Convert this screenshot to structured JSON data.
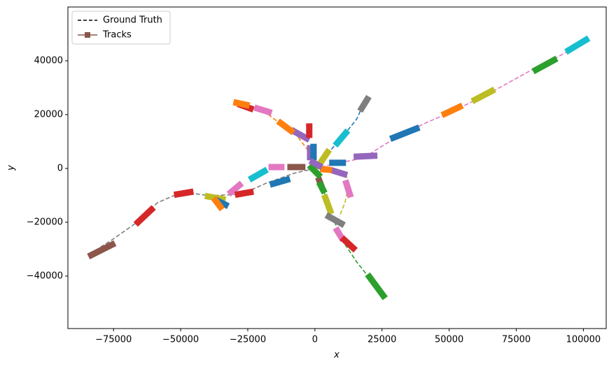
{
  "chart_data": {
    "type": "line",
    "xlabel": "x",
    "ylabel": "y",
    "xlim": [
      -92000,
      108500
    ],
    "ylim": [
      -59500,
      60000
    ],
    "xticks": [
      {
        "value": -75000,
        "label": "−75000"
      },
      {
        "value": -50000,
        "label": "−50000"
      },
      {
        "value": -25000,
        "label": "−25000"
      },
      0,
      25000,
      50000,
      75000,
      100000
    ],
    "yticks": [
      {
        "value": -40000,
        "label": "−40000"
      },
      {
        "value": -20000,
        "label": "−20000"
      },
      0,
      20000,
      40000
    ],
    "legend": {
      "loc": "upper left",
      "entries": [
        {
          "label": "Ground Truth",
          "color": "#000000",
          "style": "dashed"
        },
        {
          "label": "Tracks",
          "color": "#8c564b",
          "style": "solid-square"
        }
      ]
    },
    "ground_truth": [
      {
        "color": "#e377c2",
        "x": [
          0,
          9100,
          18200,
          24700,
          31200,
          41700,
          50800,
          65100,
          80700,
          88500,
          101000
        ],
        "y": [
          0,
          2100,
          3900,
          8100,
          12000,
          17100,
          21000,
          28000,
          36600,
          40300,
          47500
        ]
      },
      {
        "color": "#1f77b4",
        "x": [
          0,
          4700,
          10400,
          15600,
          18800
        ],
        "y": [
          0,
          5500,
          11900,
          18400,
          25500
        ]
      },
      {
        "color": "#ff7f0e",
        "x": [
          0,
          -2600,
          -6500,
          -11700,
          -19500,
          -27300
        ],
        "y": [
          0,
          6800,
          11900,
          15800,
          21600,
          23600
        ]
      },
      {
        "color": "#7f7f7f",
        "x": [
          0,
          -7800,
          -18200,
          -27300,
          -39100,
          -49500,
          -58600,
          -65100,
          -75500,
          -83300
        ],
        "y": [
          0,
          -1800,
          -5500,
          -9600,
          -10100,
          -8800,
          -12700,
          -19200,
          -26500,
          -31400
        ]
      },
      {
        "color": "#2ca02c",
        "x": [
          0,
          2600,
          6500,
          10400,
          15600,
          20800,
          24700
        ],
        "y": [
          0,
          -6200,
          -18000,
          -27000,
          -34800,
          -41300,
          -46500
        ]
      },
      {
        "color": "#bcbd22",
        "x": [
          0,
          6500,
          11700,
          12500,
          11200,
          9100
        ],
        "y": [
          0,
          -500,
          -2300,
          -6200,
          -12700,
          -17900
        ]
      }
    ],
    "tracks": [
      {
        "color": "#9467bd",
        "x": [
          15600,
          22100
        ],
        "y": [
          4400,
          4700
        ]
      },
      {
        "color": "#1f77b4",
        "x": [
          29200,
          37800
        ],
        "y": [
          11400,
          14800
        ]
      },
      {
        "color": "#ff7f0e",
        "x": [
          48400,
          53900
        ],
        "y": [
          20300,
          22900
        ]
      },
      {
        "color": "#bcbd22",
        "x": [
          59600,
          65900
        ],
        "y": [
          25500,
          28800
        ]
      },
      {
        "color": "#2ca02c",
        "x": [
          82300,
          89100
        ],
        "y": [
          36600,
          40300
        ]
      },
      {
        "color": "#17becf",
        "x": [
          94500,
          101000
        ],
        "y": [
          43900,
          47800
        ]
      },
      {
        "color": "#17becf",
        "x": [
          8300,
          11500
        ],
        "y": [
          9400,
          13200
        ]
      },
      {
        "color": "#7f7f7f",
        "x": [
          17400,
          19500
        ],
        "y": [
          22300,
          25700
        ]
      },
      {
        "color": "#9467bd",
        "x": [
          -7800,
          -3100
        ],
        "y": [
          13800,
          11200
        ]
      },
      {
        "color": "#ff7f0e",
        "x": [
          -12800,
          -8900
        ],
        "y": [
          16900,
          14000
        ]
      },
      {
        "color": "#e377c2",
        "x": [
          -21400,
          -17200
        ],
        "y": [
          22300,
          21000
        ]
      },
      {
        "color": "#d62728",
        "x": [
          -27600,
          -24000
        ],
        "y": [
          23600,
          22300
        ]
      },
      {
        "color": "#ff7f0e",
        "x": [
          -29200,
          -25500
        ],
        "y": [
          24400,
          23600
        ]
      },
      {
        "color": "#d62728",
        "x": [
          -2100,
          -2100
        ],
        "y": [
          15600,
          12500
        ]
      },
      {
        "color": "#8c564b",
        "x": [
          -9100,
          -4700
        ],
        "y": [
          500,
          500
        ]
      },
      {
        "color": "#e377c2",
        "x": [
          -16100,
          -12500
        ],
        "y": [
          500,
          500
        ]
      },
      {
        "color": "#1f77b4",
        "x": [
          -15600,
          -10400
        ],
        "y": [
          -5700,
          -4200
        ]
      },
      {
        "color": "#17becf",
        "x": [
          -23400,
          -18800
        ],
        "y": [
          -3600,
          -1000
        ]
      },
      {
        "color": "#e377c2",
        "x": [
          -31200,
          -28100
        ],
        "y": [
          -8800,
          -6200
        ]
      },
      {
        "color": "#d62728",
        "x": [
          -28600,
          -24000
        ],
        "y": [
          -9600,
          -8800
        ]
      },
      {
        "color": "#bcbd22",
        "x": [
          -39800,
          -34400
        ],
        "y": [
          -10400,
          -11400
        ]
      },
      {
        "color": "#1f77b4",
        "x": [
          -36500,
          -33300
        ],
        "y": [
          -11900,
          -13500
        ]
      },
      {
        "color": "#ff7f0e",
        "x": [
          -37000,
          -35200
        ],
        "y": [
          -11900,
          -14300
        ]
      },
      {
        "color": "#d62728",
        "x": [
          -51300,
          -46400
        ],
        "y": [
          -9600,
          -8800
        ]
      },
      {
        "color": "#d62728",
        "x": [
          -65900,
          -60900
        ],
        "y": [
          -20000,
          -15300
        ]
      },
      {
        "color": "#8c564b",
        "x": [
          -83300,
          -75500
        ],
        "y": [
          -32200,
          -28300
        ]
      },
      {
        "color": "#bcbd22",
        "x": [
          3900,
          5700
        ],
        "y": [
          -10900,
          -15800
        ]
      },
      {
        "color": "#7f7f7f",
        "x": [
          5200,
          9900
        ],
        "y": [
          -17900,
          -20500
        ]
      },
      {
        "color": "#e377c2",
        "x": [
          8300,
          9900
        ],
        "y": [
          -23100,
          -25700
        ]
      },
      {
        "color": "#d62728",
        "x": [
          10900,
          14300
        ],
        "y": [
          -26500,
          -29600
        ]
      },
      {
        "color": "#2ca02c",
        "x": [
          20300,
          25500
        ],
        "y": [
          -40300,
          -47300
        ]
      },
      {
        "color": "#8c564b",
        "x": [
          1600,
          2600
        ],
        "y": [
          -4400,
          -7000
        ]
      },
      {
        "color": "#2ca02c",
        "x": [
          2100,
          3100
        ],
        "y": [
          -6200,
          -8100
        ]
      },
      {
        "color": "#1f77b4",
        "x": [
          6500,
          10400
        ],
        "y": [
          2100,
          2100
        ]
      },
      {
        "color": "#9467bd",
        "x": [
          7300,
          10900
        ],
        "y": [
          -1000,
          -2100
        ]
      },
      {
        "color": "#e377c2",
        "x": [
          11700,
          13000
        ],
        "y": [
          -5500,
          -9600
        ]
      },
      {
        "color": "#ff7f0e",
        "x": [
          3100,
          5200
        ],
        "y": [
          -300,
          -500
        ]
      },
      {
        "color": "#2ca02c",
        "x": [
          -1300,
          1300
        ],
        "y": [
          300,
          -2300
        ]
      },
      {
        "color": "#9467bd",
        "x": [
          -1800,
          -1800
        ],
        "y": [
          7500,
          4200
        ]
      },
      {
        "color": "#1f77b4",
        "x": [
          -500,
          -500
        ],
        "y": [
          8000,
          4200
        ]
      },
      {
        "color": "#bcbd22",
        "x": [
          2600,
          4700
        ],
        "y": [
          2900,
          6000
        ]
      },
      {
        "color": "#9467bd",
        "x": [
          -800,
          1600
        ],
        "y": [
          2300,
          1000
        ]
      }
    ]
  }
}
